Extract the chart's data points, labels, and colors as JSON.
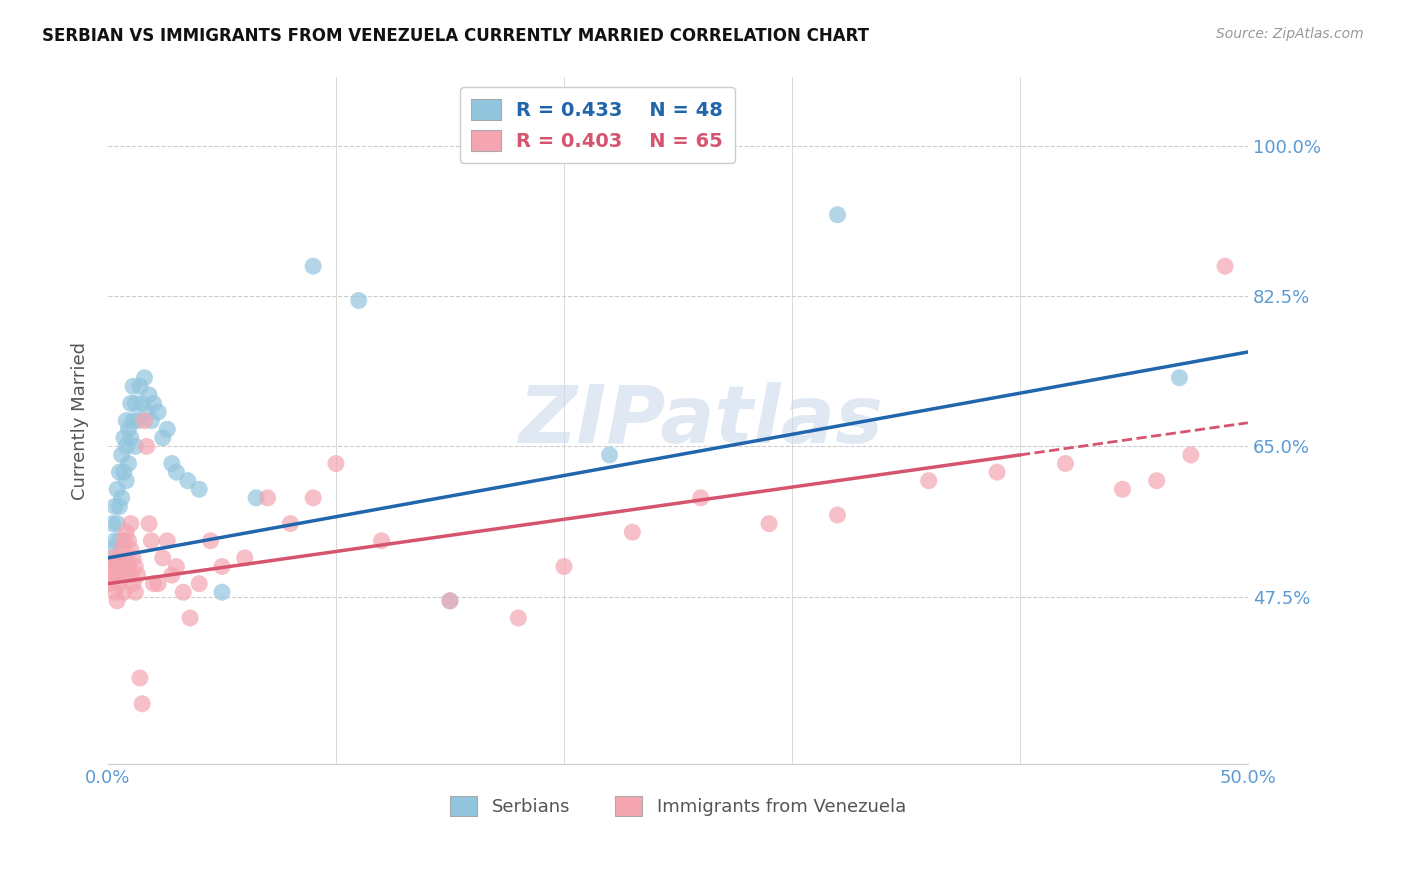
{
  "title": "SERBIAN VS IMMIGRANTS FROM VENEZUELA CURRENTLY MARRIED CORRELATION CHART",
  "source": "Source: ZipAtlas.com",
  "ylabel": "Currently Married",
  "y_ticks": [
    0.475,
    0.65,
    0.825,
    1.0
  ],
  "y_tick_labels": [
    "47.5%",
    "65.0%",
    "82.5%",
    "100.0%"
  ],
  "x_range": [
    0.0,
    0.5
  ],
  "y_range": [
    0.28,
    1.08
  ],
  "series1_label": "Serbians",
  "series2_label": "Immigrants from Venezuela",
  "series1_R": "0.433",
  "series1_N": "48",
  "series2_R": "0.403",
  "series2_N": "65",
  "series1_color": "#92c5de",
  "series2_color": "#f4a5b0",
  "line1_color": "#2166ac",
  "line2_color": "#d6546e",
  "watermark": "ZIPatlas",
  "series1_x": [
    0.001,
    0.002,
    0.002,
    0.003,
    0.003,
    0.004,
    0.004,
    0.005,
    0.005,
    0.005,
    0.006,
    0.006,
    0.007,
    0.007,
    0.008,
    0.008,
    0.008,
    0.009,
    0.009,
    0.01,
    0.01,
    0.011,
    0.011,
    0.012,
    0.012,
    0.013,
    0.014,
    0.015,
    0.016,
    0.017,
    0.018,
    0.019,
    0.02,
    0.022,
    0.024,
    0.026,
    0.028,
    0.03,
    0.035,
    0.04,
    0.05,
    0.065,
    0.09,
    0.11,
    0.15,
    0.22,
    0.32,
    0.47
  ],
  "series1_y": [
    0.53,
    0.56,
    0.51,
    0.58,
    0.54,
    0.6,
    0.56,
    0.62,
    0.58,
    0.54,
    0.64,
    0.59,
    0.66,
    0.62,
    0.68,
    0.65,
    0.61,
    0.67,
    0.63,
    0.7,
    0.66,
    0.72,
    0.68,
    0.7,
    0.65,
    0.68,
    0.72,
    0.7,
    0.73,
    0.69,
    0.71,
    0.68,
    0.7,
    0.69,
    0.66,
    0.67,
    0.63,
    0.62,
    0.61,
    0.6,
    0.48,
    0.59,
    0.86,
    0.82,
    0.47,
    0.64,
    0.92,
    0.73
  ],
  "series2_x": [
    0.001,
    0.001,
    0.002,
    0.002,
    0.003,
    0.003,
    0.004,
    0.004,
    0.005,
    0.005,
    0.005,
    0.006,
    0.006,
    0.007,
    0.007,
    0.007,
    0.008,
    0.008,
    0.009,
    0.009,
    0.01,
    0.01,
    0.01,
    0.011,
    0.011,
    0.012,
    0.012,
    0.013,
    0.014,
    0.015,
    0.016,
    0.017,
    0.018,
    0.019,
    0.02,
    0.022,
    0.024,
    0.026,
    0.028,
    0.03,
    0.033,
    0.036,
    0.04,
    0.045,
    0.05,
    0.06,
    0.07,
    0.08,
    0.09,
    0.1,
    0.12,
    0.15,
    0.18,
    0.2,
    0.23,
    0.26,
    0.29,
    0.32,
    0.36,
    0.39,
    0.42,
    0.445,
    0.46,
    0.475,
    0.49
  ],
  "series2_y": [
    0.49,
    0.51,
    0.5,
    0.52,
    0.48,
    0.51,
    0.5,
    0.47,
    0.52,
    0.49,
    0.51,
    0.53,
    0.5,
    0.54,
    0.51,
    0.48,
    0.55,
    0.52,
    0.54,
    0.51,
    0.56,
    0.53,
    0.5,
    0.49,
    0.52,
    0.48,
    0.51,
    0.5,
    0.38,
    0.35,
    0.68,
    0.65,
    0.56,
    0.54,
    0.49,
    0.49,
    0.52,
    0.54,
    0.5,
    0.51,
    0.48,
    0.45,
    0.49,
    0.54,
    0.51,
    0.52,
    0.59,
    0.56,
    0.59,
    0.63,
    0.54,
    0.47,
    0.45,
    0.51,
    0.55,
    0.59,
    0.56,
    0.57,
    0.61,
    0.62,
    0.63,
    0.6,
    0.61,
    0.64,
    0.86
  ],
  "line1_x0": 0.0,
  "line1_y0": 0.52,
  "line1_x1": 0.5,
  "line1_y1": 0.76,
  "line2_x0": 0.0,
  "line2_y0": 0.49,
  "line2_x1": 0.4,
  "line2_y1": 0.64,
  "line2_dash_x0": 0.4,
  "line2_dash_x1": 0.5
}
